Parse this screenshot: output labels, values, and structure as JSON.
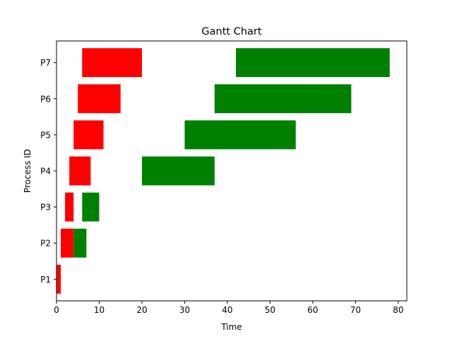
{
  "chart_data": {
    "type": "gantt",
    "title": "Gantt Chart",
    "xlabel": "Time",
    "ylabel": "Process ID",
    "xlim": [
      0,
      82
    ],
    "xticks": [
      0,
      10,
      20,
      30,
      40,
      50,
      60,
      70,
      80
    ],
    "categories": [
      "P1",
      "P2",
      "P3",
      "P4",
      "P5",
      "P6",
      "P7"
    ],
    "grid": false,
    "legend": "none",
    "series": [
      {
        "color": "#ff0000",
        "bars": [
          {
            "process": "P1",
            "start": 0,
            "end": 1
          },
          {
            "process": "P2",
            "start": 1,
            "end": 4
          },
          {
            "process": "P3",
            "start": 2,
            "end": 4
          },
          {
            "process": "P4",
            "start": 3,
            "end": 8
          },
          {
            "process": "P5",
            "start": 4,
            "end": 11
          },
          {
            "process": "P6",
            "start": 5,
            "end": 15
          },
          {
            "process": "P7",
            "start": 6,
            "end": 20
          }
        ]
      },
      {
        "color": "#008000",
        "bars": [
          {
            "process": "P2",
            "start": 4,
            "end": 7
          },
          {
            "process": "P3",
            "start": 6,
            "end": 10
          },
          {
            "process": "P4",
            "start": 20,
            "end": 37
          },
          {
            "process": "P5",
            "start": 30,
            "end": 56
          },
          {
            "process": "P6",
            "start": 37,
            "end": 69
          },
          {
            "process": "P7",
            "start": 42,
            "end": 78
          }
        ]
      }
    ]
  }
}
